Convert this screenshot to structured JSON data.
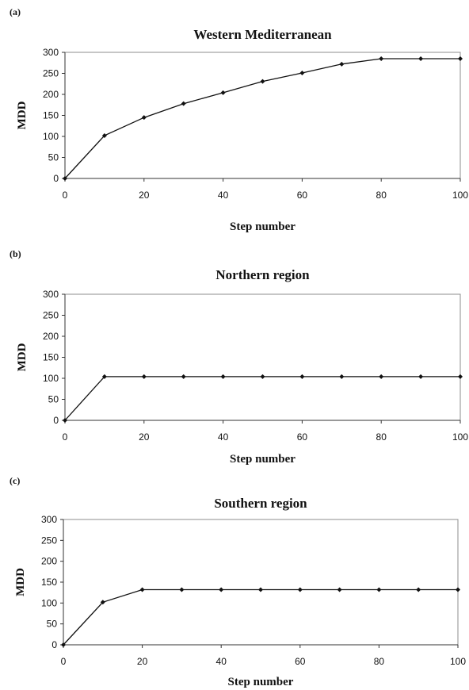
{
  "chart_data": [
    {
      "type": "line",
      "panel_label": "(a)",
      "title": "Western Mediterranean",
      "xlabel": "Step number",
      "ylabel": "MDD",
      "xlim": [
        0,
        100
      ],
      "ylim": [
        0,
        300
      ],
      "xticks": [
        0,
        20,
        40,
        60,
        80,
        100
      ],
      "yticks": [
        0,
        50,
        100,
        150,
        200,
        250,
        300
      ],
      "grid": false,
      "x": [
        0,
        10,
        20,
        30,
        40,
        50,
        60,
        70,
        80,
        90,
        100
      ],
      "y": [
        0,
        102,
        145,
        178,
        204,
        231,
        251,
        272,
        285,
        285,
        285
      ]
    },
    {
      "type": "line",
      "panel_label": "(b)",
      "title": "Northern region",
      "xlabel": "Step number",
      "ylabel": "MDD",
      "xlim": [
        0,
        100
      ],
      "ylim": [
        0,
        300
      ],
      "xticks": [
        0,
        20,
        40,
        60,
        80,
        100
      ],
      "yticks": [
        0,
        50,
        100,
        150,
        200,
        250,
        300
      ],
      "grid": false,
      "x": [
        0,
        10,
        20,
        30,
        40,
        50,
        60,
        70,
        80,
        90,
        100
      ],
      "y": [
        0,
        104,
        104,
        104,
        104,
        104,
        104,
        104,
        104,
        104,
        104
      ]
    },
    {
      "type": "line",
      "panel_label": "(c)",
      "title": "Southern region",
      "xlabel": "Step number",
      "ylabel": "MDD",
      "xlim": [
        0,
        100
      ],
      "ylim": [
        0,
        300
      ],
      "xticks": [
        0,
        20,
        40,
        60,
        80,
        100
      ],
      "yticks": [
        0,
        50,
        100,
        150,
        200,
        250,
        300
      ],
      "grid": false,
      "x": [
        0,
        10,
        20,
        30,
        40,
        50,
        60,
        70,
        80,
        90,
        100
      ],
      "y": [
        0,
        102,
        132,
        132,
        132,
        132,
        132,
        132,
        132,
        132,
        132
      ]
    }
  ]
}
